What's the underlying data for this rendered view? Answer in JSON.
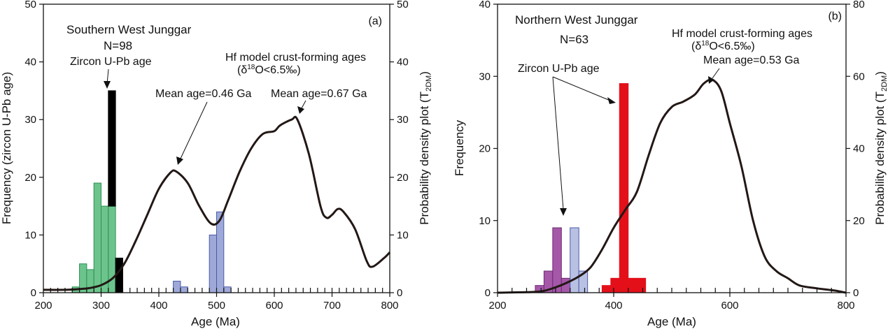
{
  "chart_data": [
    {
      "type": "bar",
      "panel_label": "(a)",
      "title": "Southern West Junggar",
      "sample_label": "N=98",
      "xlabel": "Age (Ma)",
      "ylabel": "Frequency (zircon U-Pb age)",
      "ylabel2": "Probability density plot (T2DM)",
      "ylabel2_main": "Probability density plot (T",
      "ylabel2_sub": "2DM",
      "ylabel2_close": ")",
      "xlim": [
        200,
        800
      ],
      "ylim": [
        0,
        50
      ],
      "y2lim": [
        0,
        50
      ],
      "x_ticks": [
        200,
        300,
        400,
        500,
        600,
        700,
        800
      ],
      "y_ticks": [
        0,
        10,
        20,
        30,
        40,
        50
      ],
      "y2_ticks": [
        0,
        10,
        20,
        30,
        40,
        50
      ],
      "bin_width": 12.5,
      "series": [
        {
          "color": "#6cc48c",
          "stroke": "#2f8f55",
          "bars": [
            {
              "x": 250,
              "value": 1
            },
            {
              "x": 262.5,
              "value": 5
            },
            {
              "x": 275,
              "value": 4
            },
            {
              "x": 287.5,
              "value": 19
            },
            {
              "x": 300,
              "value": 15
            },
            {
              "x": 312.5,
              "value": 15
            }
          ]
        },
        {
          "color": "#000000",
          "stroke": "#000000",
          "bars": [
            {
              "x": 312.5,
              "value": 35,
              "base": 15
            },
            {
              "x": 325,
              "value": 6
            }
          ]
        },
        {
          "color": "#9ea9d8",
          "stroke": "#4a5ba8",
          "bars": [
            {
              "x": 425,
              "value": 2
            },
            {
              "x": 437.5,
              "value": 1
            },
            {
              "x": 487.5,
              "value": 10
            },
            {
              "x": 500,
              "value": 14
            },
            {
              "x": 512.5,
              "value": 1
            }
          ]
        }
      ],
      "curve": {
        "x": [
          200,
          240,
          260,
          280,
          300,
          320,
          340,
          360,
          380,
          400,
          420,
          430,
          450,
          470,
          490,
          505,
          520,
          540,
          560,
          580,
          600,
          610,
          630,
          640,
          660,
          680,
          690,
          700,
          710,
          720,
          740,
          760,
          770,
          790,
          800
        ],
        "y": [
          0.5,
          0.5,
          0.6,
          0.8,
          1.3,
          2.5,
          5,
          9,
          13.5,
          18,
          20.8,
          21,
          19,
          15,
          12,
          12.5,
          16,
          21,
          25,
          27.5,
          28,
          29,
          30,
          30,
          24,
          15,
          13,
          13.5,
          14.5,
          14,
          11,
          5.5,
          4.5,
          6,
          7
        ]
      },
      "annotations": {
        "zircon": "Zircon U-Pb age",
        "hf_line1": "Hf model crust-forming ages",
        "hf_line2_pre": "(δ",
        "hf_line2_sup": "18",
        "hf_line2_post": "O<6.5‰)",
        "mean1": "Mean age=0.46 Ga",
        "mean2": "Mean age=0.67 Ga"
      }
    },
    {
      "type": "bar",
      "panel_label": "(b)",
      "title": "Northern West Junggar",
      "sample_label": "N=63",
      "xlabel": "Age (Ma)",
      "ylabel": "Frequency",
      "ylabel2": "Probability density plot (T2DM)",
      "ylabel2_main": "Probability density plot (T",
      "ylabel2_sub": "2DM",
      "ylabel2_close": ")",
      "xlim": [
        200,
        800
      ],
      "ylim": [
        0,
        40
      ],
      "y2lim": [
        0,
        80
      ],
      "x_ticks": [
        200,
        400,
        600,
        800
      ],
      "y_ticks": [
        0,
        10,
        20,
        30,
        40
      ],
      "y2_ticks": [
        0,
        20,
        40,
        60,
        80
      ],
      "bin_width": 15,
      "series": [
        {
          "color": "#a558a8",
          "stroke": "#6d2a72",
          "bars": [
            {
              "x": 265,
              "value": 1
            },
            {
              "x": 280,
              "value": 3
            },
            {
              "x": 295,
              "value": 9
            },
            {
              "x": 310,
              "value": 2
            }
          ]
        },
        {
          "color": "#b9c1e3",
          "stroke": "#4a5ba8",
          "bars": [
            {
              "x": 325,
              "value": 9
            },
            {
              "x": 340,
              "value": 3
            }
          ]
        },
        {
          "color": "#e3101a",
          "stroke": "#e3101a",
          "bars": [
            {
              "x": 380,
              "value": 1
            },
            {
              "x": 395,
              "value": 2
            },
            {
              "x": 410,
              "value": 29
            },
            {
              "x": 425,
              "value": 2
            },
            {
              "x": 440,
              "value": 2
            }
          ]
        }
      ],
      "curve": {
        "x": [
          200,
          260,
          280,
          300,
          320,
          340,
          360,
          380,
          400,
          420,
          440,
          460,
          480,
          500,
          520,
          540,
          555,
          570,
          585,
          600,
          620,
          640,
          660,
          680,
          700,
          720,
          750,
          780,
          800
        ],
        "y": [
          0,
          0.2,
          0.5,
          1.5,
          2.8,
          4.5,
          7,
          12,
          18,
          23,
          28,
          38,
          47,
          51.5,
          53,
          55,
          58,
          59,
          56,
          47,
          35,
          20,
          10,
          6,
          4,
          2,
          1.2,
          0.6,
          0
        ]
      },
      "annotations": {
        "zircon": "Zircon U-Pb age",
        "hf_line1": "Hf model crust-forming ages",
        "hf_line2_pre": "(δ",
        "hf_line2_sup": "18",
        "hf_line2_post": "O<6.5‰)",
        "mean": "Mean age=0.53 Ga"
      }
    }
  ]
}
